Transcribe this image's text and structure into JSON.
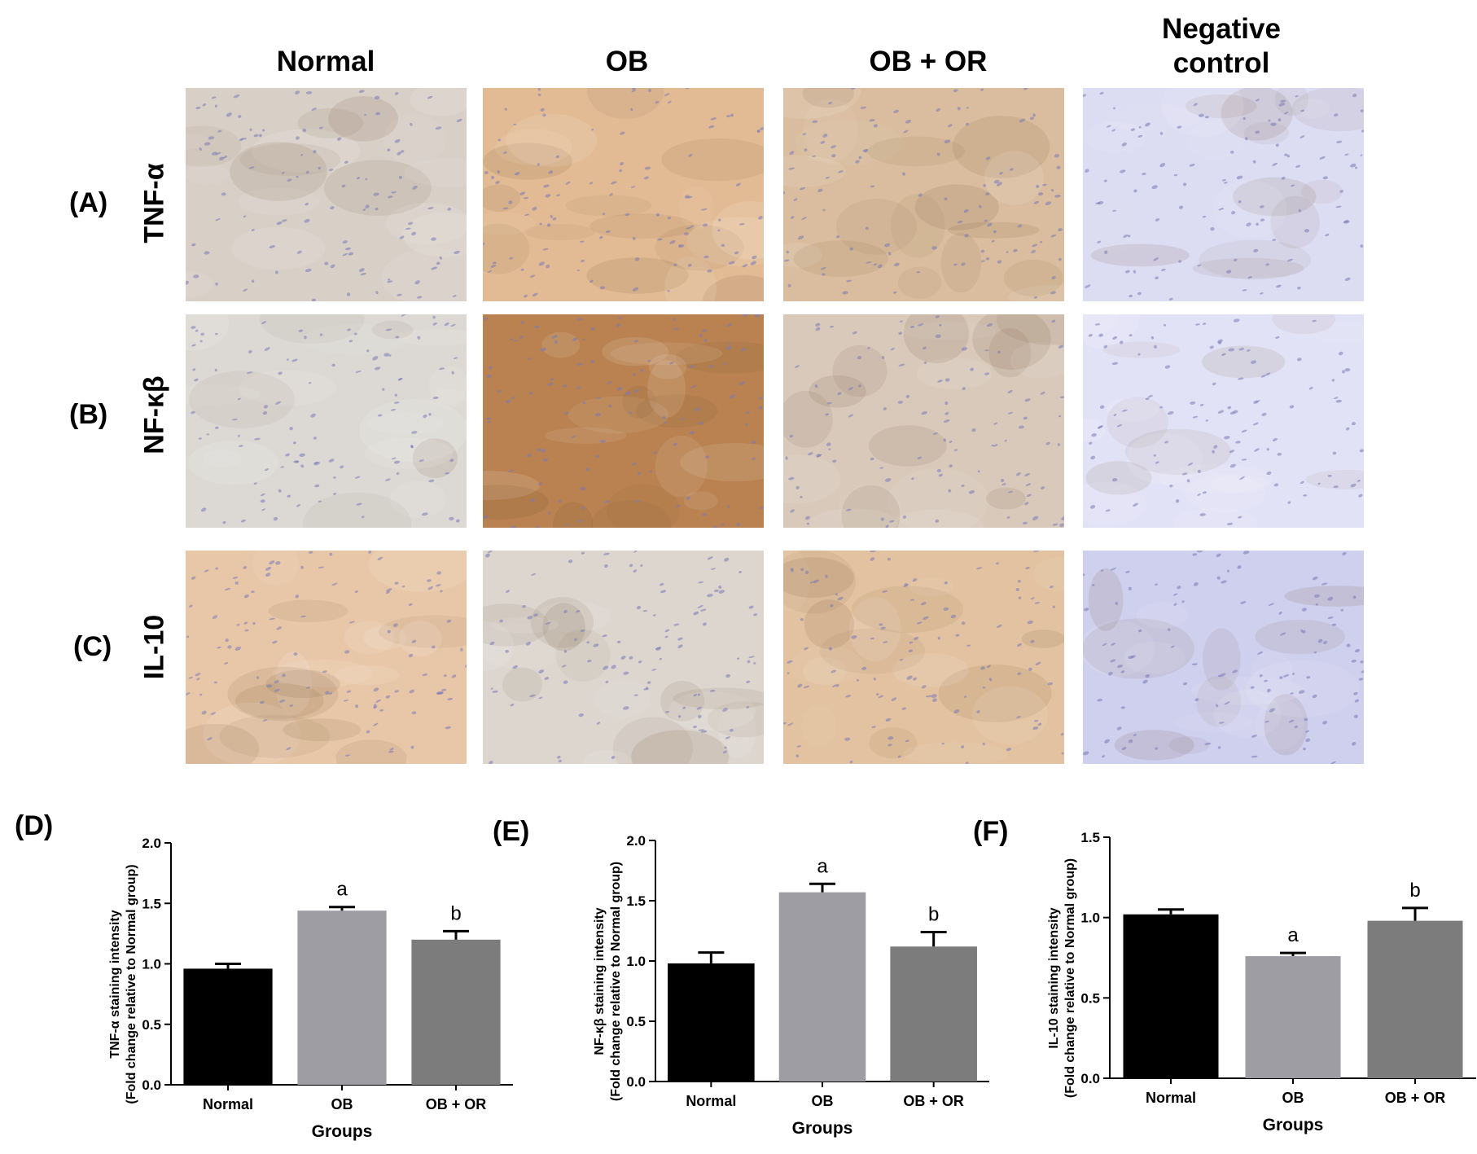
{
  "columns": [
    "Normal",
    "OB",
    "OB + OR",
    "Negative\ncontrol"
  ],
  "rows": [
    {
      "panel": "(A)",
      "marker": "TNF-α"
    },
    {
      "panel": "(B)",
      "marker": "NF-κβ"
    },
    {
      "panel": "(C)",
      "marker": "IL-10"
    }
  ],
  "micrographs": {
    "colors": [
      [
        "#d8cfc7",
        "#e2bb94",
        "#d9bd9e",
        "#dcdcf2"
      ],
      [
        "#dcd9d4",
        "#b98250",
        "#d8c9bb",
        "#e2e2f6"
      ],
      [
        "#e8c7a8",
        "#dcd6cf",
        "#e2c2a0",
        "#cfcfee"
      ]
    ],
    "nuclei_color": "#7a7ab8"
  },
  "chart_data": [
    {
      "panel": "(D)",
      "type": "bar",
      "categories": [
        "Normal",
        "OB",
        "OB + OR"
      ],
      "values": [
        0.96,
        1.44,
        1.2
      ],
      "errors": [
        0.04,
        0.03,
        0.07
      ],
      "annotations": [
        "",
        "a",
        "b"
      ],
      "colors": [
        "#000000",
        "#9d9da3",
        "#7c7c7c"
      ],
      "ylabel_line1": "TNF-α staining intensity",
      "ylabel_line2": "(Fold change relative to Normal group)",
      "xlabel": "Groups",
      "ylim": [
        0,
        2.0
      ],
      "yticks": [
        "0.0",
        "0.5",
        "1.0",
        "1.5",
        "2.0"
      ]
    },
    {
      "panel": "(E)",
      "type": "bar",
      "categories": [
        "Normal",
        "OB",
        "OB + OR"
      ],
      "values": [
        0.98,
        1.57,
        1.12
      ],
      "errors": [
        0.09,
        0.07,
        0.12
      ],
      "annotations": [
        "",
        "a",
        "b"
      ],
      "colors": [
        "#000000",
        "#9d9da3",
        "#7c7c7c"
      ],
      "ylabel_line1": "NF-κβ staining intensity",
      "ylabel_line2": "(Fold change relative to Normal group)",
      "xlabel": "Groups",
      "ylim": [
        0,
        2.0
      ],
      "yticks": [
        "0.0",
        "0.5",
        "1.0",
        "1.5",
        "2.0"
      ]
    },
    {
      "panel": "(F)",
      "type": "bar",
      "categories": [
        "Normal",
        "OB",
        "OB + OR"
      ],
      "values": [
        1.02,
        0.76,
        0.98
      ],
      "errors": [
        0.03,
        0.02,
        0.08
      ],
      "annotations": [
        "",
        "a",
        "b"
      ],
      "colors": [
        "#000000",
        "#9d9da3",
        "#7c7c7c"
      ],
      "ylabel_line1": "IL-10 staining intensity",
      "ylabel_line2": "(Fold change relative to Normal group)",
      "xlabel": "Groups",
      "ylim": [
        0,
        1.5
      ],
      "yticks": [
        "0.0",
        "0.5",
        "1.0",
        "1.5"
      ]
    }
  ]
}
